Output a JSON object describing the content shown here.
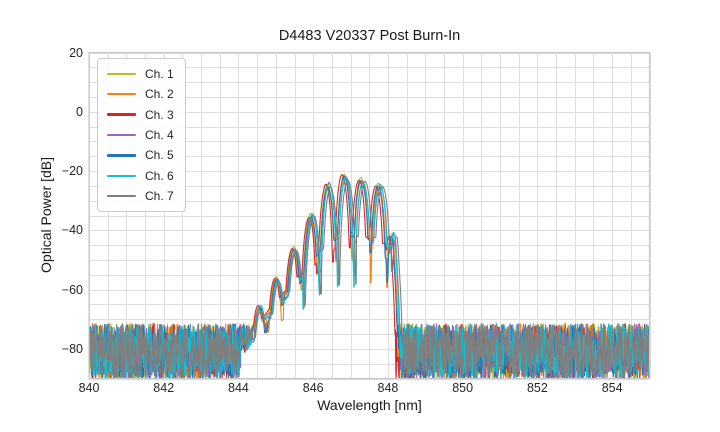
{
  "chart_data": {
    "type": "line",
    "title": "D4483 V20337 Post Burn-In",
    "xlabel": "Wavelength [nm]",
    "ylabel": "Optical Power [dB]",
    "xlim": [
      840,
      855
    ],
    "ylim": [
      -90,
      20
    ],
    "xtick_values": [
      840,
      842,
      844,
      846,
      848,
      850,
      852,
      854
    ],
    "xtick_labels": [
      "840",
      "842",
      "844",
      "846",
      "848",
      "850",
      "852",
      "854"
    ],
    "ytick_values": [
      20,
      0,
      -20,
      -40,
      -60,
      -80
    ],
    "ytick_labels": [
      "20",
      "0",
      "−20",
      "−40",
      "−60",
      "−80"
    ],
    "grid": {
      "x_step_nm": 0.5,
      "y_step_db": 5,
      "color": "#dddddd",
      "spine_color": "#c8c8c8"
    },
    "legend_position": "upper left",
    "series": [
      {
        "name": "Ch. 1",
        "color": "#bcbd22",
        "shift0_nm": -0.02,
        "shift_slope": 0.02
      },
      {
        "name": "Ch. 2",
        "color": "#ff7f0e",
        "shift0_nm": -0.04,
        "shift_slope": 0.03
      },
      {
        "name": "Ch. 3",
        "color": "#d62728",
        "shift0_nm": -0.05,
        "shift_slope": 0.01
      },
      {
        "name": "Ch. 4",
        "color": "#9467bd",
        "shift0_nm": 0.01,
        "shift_slope": 0.028
      },
      {
        "name": "Ch. 5",
        "color": "#1f77b4",
        "shift0_nm": 0.0,
        "shift_slope": 0.012
      },
      {
        "name": "Ch. 6",
        "color": "#17becf",
        "shift0_nm": 0.02,
        "shift_slope": 0.022
      },
      {
        "name": "Ch. 7",
        "color": "#7f7f7f",
        "shift0_nm": 0.03,
        "shift_slope": 0.038
      }
    ],
    "envelope_db": [
      [
        844.08,
        -80
      ],
      [
        844.32,
        -70
      ],
      [
        844.55,
        -66
      ],
      [
        845.0,
        -57
      ],
      [
        845.45,
        -47
      ],
      [
        845.9,
        -35.5
      ],
      [
        846.35,
        -24.5
      ],
      [
        846.8,
        -22
      ],
      [
        847.25,
        -23.5
      ],
      [
        847.7,
        -25
      ],
      [
        847.95,
        -27
      ],
      [
        848.08,
        -40
      ],
      [
        848.17,
        -62
      ],
      [
        848.22,
        -80
      ]
    ],
    "modulation": {
      "period_nm": 0.45,
      "peak_anchor_nm": 846.35,
      "depth_coef": 0.3,
      "depth_ref_db": -85,
      "min_depth_db": 3.5,
      "notch_sharpness": 40
    },
    "noise": {
      "top_db": -71.5,
      "span_db": 19
    },
    "signal_range_nm": [
      844.08,
      848.22
    ],
    "peak_power_db": -22,
    "noise_floor_db": -80
  }
}
